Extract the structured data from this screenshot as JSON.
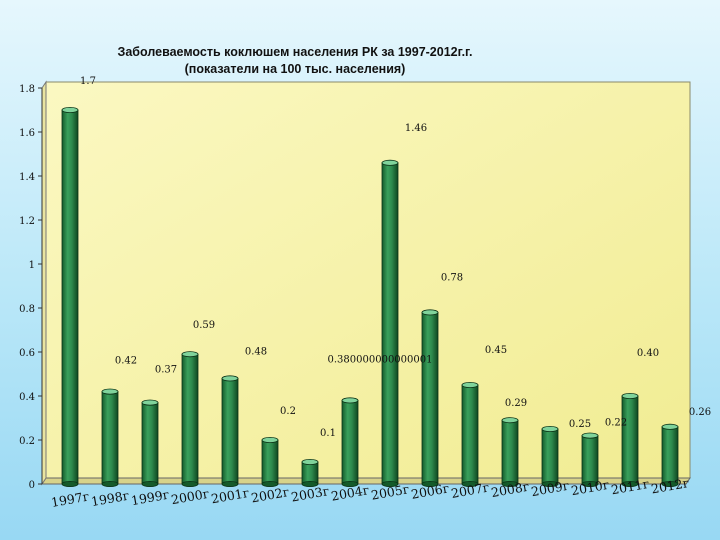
{
  "chart_data": {
    "type": "bar",
    "title": "Заболеваемость коклюшем населения РК за 1997-2012г.г.",
    "subtitle": "(показатели на 100 тыс. населения)",
    "xlabel": "",
    "ylabel": "",
    "categories": [
      "1997г",
      "1998г",
      "1999г",
      "2000г",
      "2001г",
      "2002г",
      "2003г",
      "2004г",
      "2005г",
      "2006г",
      "2007г",
      "2008г",
      "2009г",
      "2010г",
      "2011г",
      "2012г"
    ],
    "values": [
      1.7,
      0.42,
      0.37,
      0.59,
      0.48,
      0.2,
      0.1,
      0.38,
      1.46,
      0.78,
      0.45,
      0.29,
      0.25,
      0.22,
      0.4,
      0.26
    ],
    "data_labels": [
      "1.7",
      "0.42",
      "0.37",
      "0.59",
      "0.48",
      "0.2",
      "0.1",
      "0.380000000000001",
      "1.46",
      "0.78",
      "0.45",
      "0.29",
      "0.25",
      "0.22",
      "0.40",
      "0.26"
    ],
    "y_ticks": [
      "0",
      "0.2",
      "0.4",
      "0.6",
      "0.8",
      "1",
      "1.2",
      "1.4",
      "1.6",
      "1.8"
    ],
    "ylim": [
      0,
      1.8
    ],
    "grid": false,
    "legend": "none",
    "colors": {
      "bar": "#2e8b4e",
      "bar_dark": "#145a2a",
      "bar_light": "#6cc98a",
      "plot_wall": "#f7f3a6",
      "axis": "#333333"
    }
  }
}
